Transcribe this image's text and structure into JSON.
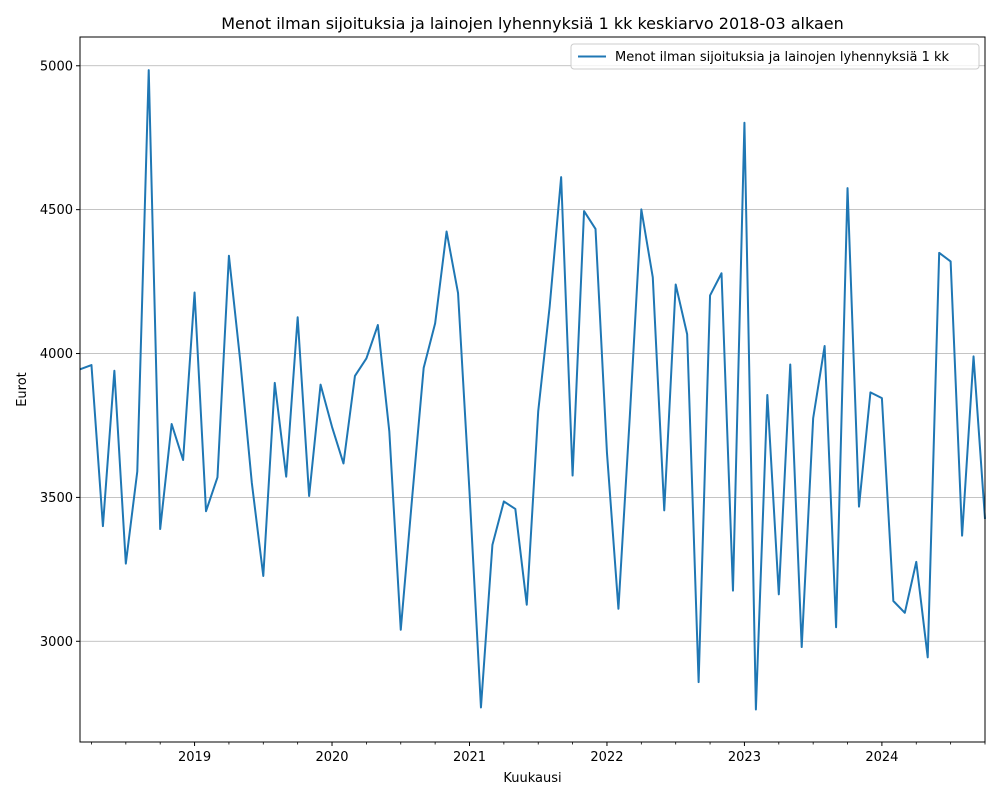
{
  "chart_data": {
    "type": "line",
    "title": "Menot ilman sijoituksia ja lainojen lyhennyksiä 1 kk keskiarvo 2018-03 alkaen",
    "xlabel": "Kuukausi",
    "ylabel": "Eurot",
    "ylim": [
      2650,
      5100
    ],
    "xlim": [
      "2018-03",
      "2024-10"
    ],
    "grid": "horizontal",
    "legend_position": "top-right",
    "yticks": [
      3000,
      3500,
      4000,
      4500,
      5000
    ],
    "xticks": [
      {
        "date": "2019-01",
        "label": "2019"
      },
      {
        "date": "2020-01",
        "label": "2020"
      },
      {
        "date": "2021-01",
        "label": "2021"
      },
      {
        "date": "2022-01",
        "label": "2022"
      },
      {
        "date": "2023-01",
        "label": "2023"
      },
      {
        "date": "2024-01",
        "label": "2024"
      }
    ],
    "series": [
      {
        "name": "Menot ilman sijoituksia ja lainojen lyhennyksiä 1 kk",
        "color": "#1f77b4",
        "x": [
          "2018-03",
          "2018-04",
          "2018-05",
          "2018-06",
          "2018-07",
          "2018-08",
          "2018-09",
          "2018-10",
          "2018-11",
          "2018-12",
          "2019-01",
          "2019-02",
          "2019-03",
          "2019-04",
          "2019-05",
          "2019-06",
          "2019-07",
          "2019-08",
          "2019-09",
          "2019-10",
          "2019-11",
          "2019-12",
          "2020-01",
          "2020-02",
          "2020-03",
          "2020-04",
          "2020-05",
          "2020-06",
          "2020-07",
          "2020-08",
          "2020-09",
          "2020-10",
          "2020-11",
          "2020-12",
          "2021-01",
          "2021-02",
          "2021-03",
          "2021-04",
          "2021-05",
          "2021-06",
          "2021-07",
          "2021-08",
          "2021-09",
          "2021-10",
          "2021-11",
          "2021-12",
          "2022-01",
          "2022-02",
          "2022-03",
          "2022-04",
          "2022-05",
          "2022-06",
          "2022-07",
          "2022-08",
          "2022-09",
          "2022-10",
          "2022-11",
          "2022-12",
          "2023-01",
          "2023-02",
          "2023-03",
          "2023-04",
          "2023-05",
          "2023-06",
          "2023-07",
          "2023-08",
          "2023-09",
          "2023-10",
          "2023-11",
          "2023-12",
          "2024-01",
          "2024-02",
          "2024-03",
          "2024-04",
          "2024-05",
          "2024-06",
          "2024-07",
          "2024-08",
          "2024-09",
          "2024-10"
        ],
        "values": [
          3945,
          3960,
          3400,
          3940,
          3270,
          3590,
          4985,
          3390,
          3755,
          3630,
          4212,
          3452,
          3570,
          4340,
          3970,
          3550,
          3227,
          3898,
          3572,
          4126,
          3505,
          3892,
          3745,
          3618,
          3922,
          3983,
          4099,
          3730,
          3040,
          3502,
          3950,
          4105,
          4424,
          4210,
          3520,
          2770,
          3335,
          3486,
          3460,
          3127,
          3800,
          4164,
          4613,
          3576,
          4495,
          4433,
          3655,
          3113,
          3785,
          4501,
          4265,
          3455,
          4240,
          4067,
          2858,
          4202,
          4279,
          3176,
          4802,
          2763,
          3856,
          3163,
          3962,
          2980,
          3775,
          4026,
          3049,
          4575,
          3468,
          3865,
          3845,
          3140,
          3099,
          3276,
          2944,
          4350,
          4320,
          3367,
          3990,
          3425
        ]
      }
    ]
  }
}
